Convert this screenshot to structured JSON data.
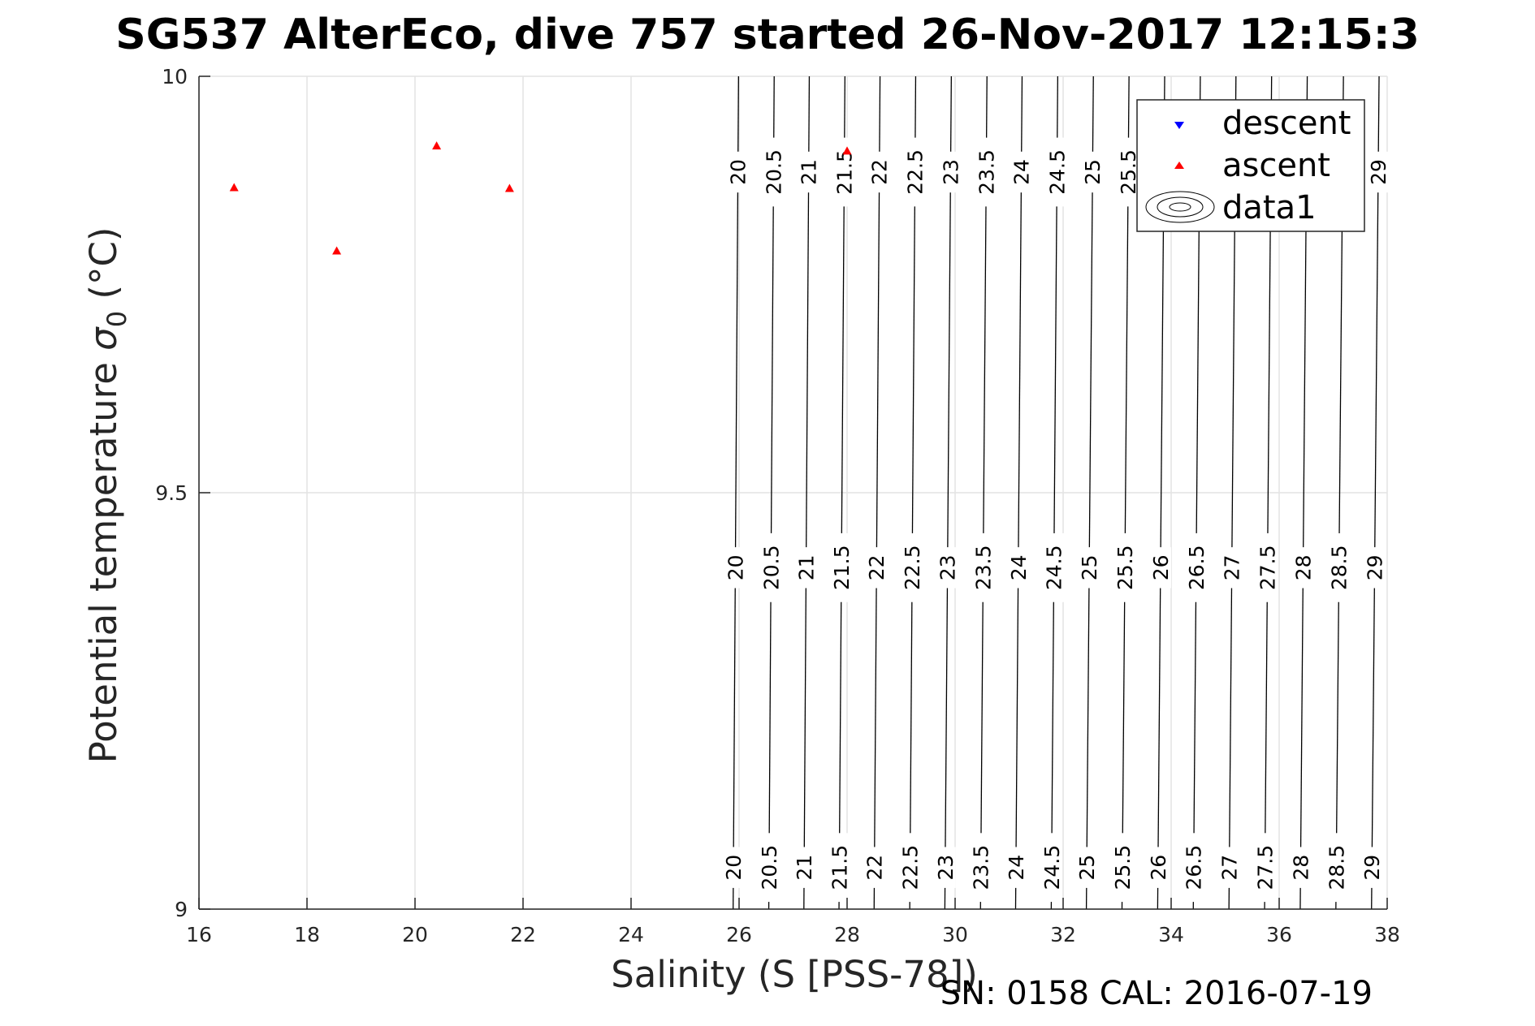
{
  "chart_data": {
    "type": "scatter",
    "title": "SG537 AlterEco, dive 757 started 26-Nov-2017 12:15:3",
    "xlabel": "Salinity (S [PSS-78])",
    "ylabel_main": "Potential temperature ",
    "ylabel_sigma": "σ",
    "ylabel_sub": "0",
    "ylabel_unit": " (°C)",
    "xlim": [
      16,
      38
    ],
    "ylim": [
      9,
      10
    ],
    "xticks": [
      16,
      18,
      20,
      22,
      24,
      26,
      28,
      30,
      32,
      34,
      36,
      38
    ],
    "yticks": [
      9,
      9.5,
      10
    ],
    "xtick_labels": [
      "16",
      "18",
      "20",
      "22",
      "24",
      "26",
      "28",
      "30",
      "32",
      "34",
      "36",
      "38"
    ],
    "ytick_labels": [
      "9",
      "9.5",
      "10"
    ],
    "grid": true,
    "legend": {
      "placement": "top-right",
      "entries": [
        {
          "label": "descent",
          "marker": "triangle-down",
          "color": "#0000ff"
        },
        {
          "label": "ascent",
          "marker": "triangle-up",
          "color": "#ff0000"
        },
        {
          "label": "data1",
          "marker": "contour",
          "color": "#000000"
        }
      ]
    },
    "series": [
      {
        "name": "descent",
        "color": "#0000ff",
        "marker": "triangle-down",
        "points": []
      },
      {
        "name": "ascent",
        "color": "#ff0000",
        "marker": "triangle-up",
        "points": [
          [
            16.65,
            9.866
          ],
          [
            18.55,
            9.79
          ],
          [
            20.4,
            9.916
          ],
          [
            21.75,
            9.865
          ],
          [
            28.0,
            9.91
          ]
        ]
      }
    ],
    "contours": {
      "name": "data1",
      "color": "#000000",
      "levels": [
        20,
        20.5,
        21,
        21.5,
        22,
        22.5,
        23,
        23.5,
        24,
        24.5,
        25,
        25.5,
        26,
        26.5,
        27,
        27.5,
        28,
        28.5,
        29
      ],
      "level_labels": [
        "20",
        "20.5",
        "21",
        "21.5",
        "22",
        "22.5",
        "23",
        "23.5",
        "24",
        "24.5",
        "25",
        "25.5",
        "26",
        "26.5",
        "27",
        "27.5",
        "28",
        "28.5",
        "29"
      ],
      "salinity_at_t9": [
        25.89,
        26.55,
        27.2,
        27.85,
        28.5,
        29.16,
        29.81,
        30.47,
        31.12,
        31.78,
        32.43,
        33.09,
        33.75,
        34.41,
        35.07,
        35.73,
        36.39,
        37.05,
        37.71
      ],
      "salinity_at_t10": [
        25.99,
        26.65,
        27.3,
        27.96,
        28.61,
        29.27,
        29.93,
        30.59,
        31.24,
        31.9,
        32.56,
        33.22,
        33.88,
        34.54,
        35.2,
        35.86,
        36.52,
        37.19,
        37.85
      ]
    },
    "annotation": "SN: 0158  CAL: 2016-07-19"
  }
}
